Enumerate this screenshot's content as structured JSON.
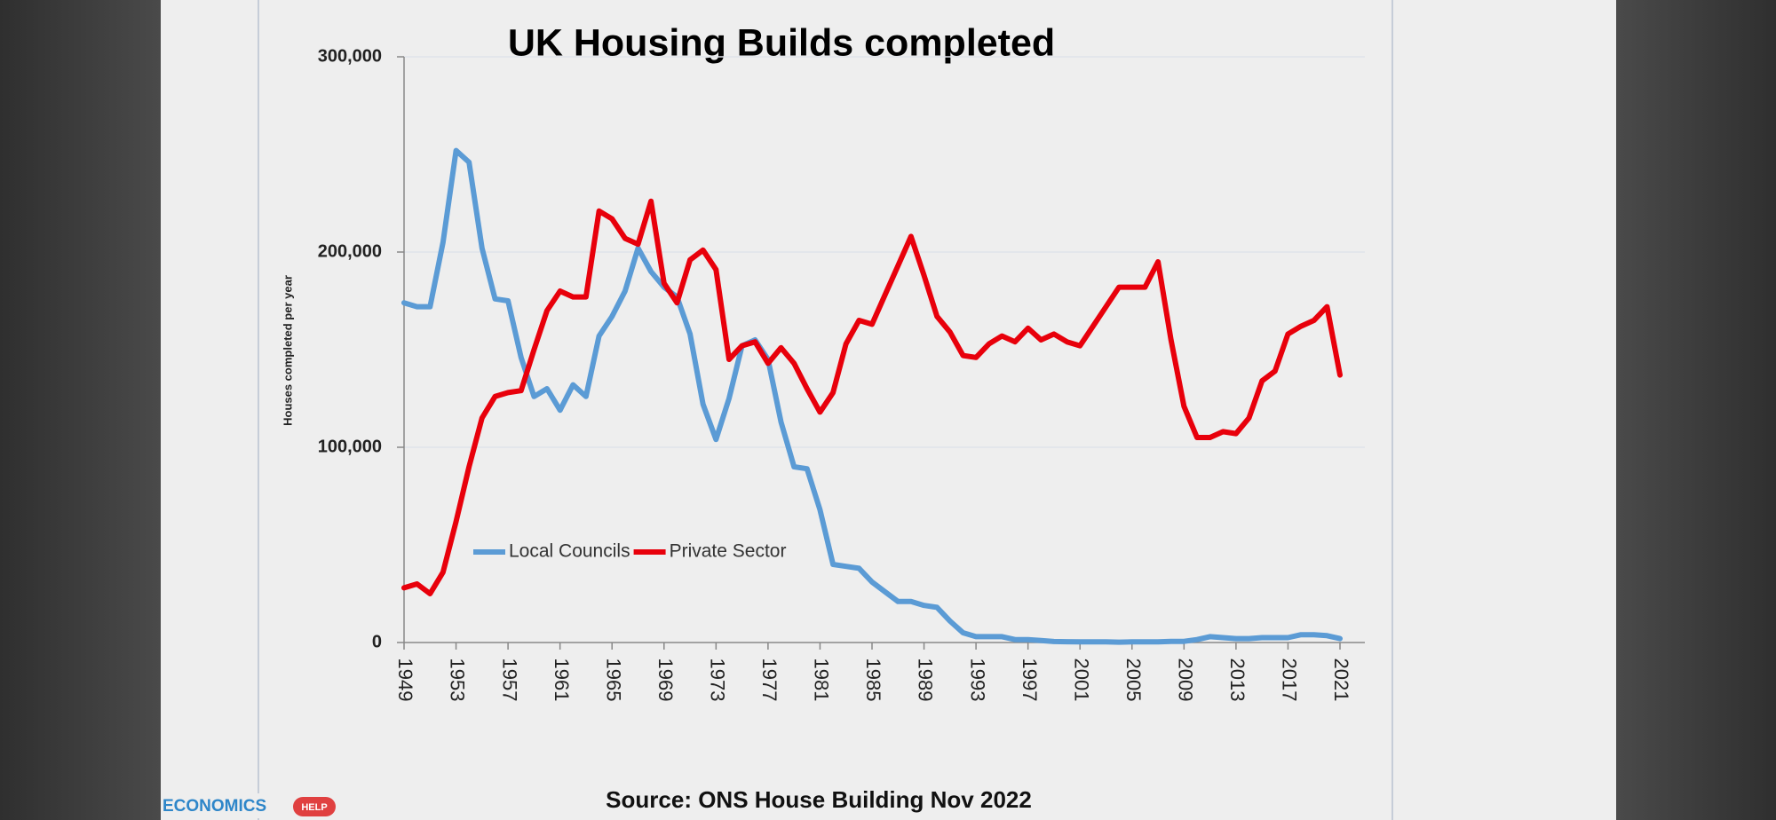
{
  "chart_data": {
    "type": "line",
    "title": "UK Housing Builds completed",
    "ylabel": "Houses completed per year",
    "source": "Source: ONS House Building Nov 2022",
    "logo": [
      "ECONOMICS",
      "HELP"
    ],
    "x": [
      1949,
      1950,
      1951,
      1952,
      1953,
      1954,
      1955,
      1956,
      1957,
      1958,
      1959,
      1960,
      1961,
      1962,
      1963,
      1964,
      1965,
      1966,
      1967,
      1968,
      1969,
      1970,
      1971,
      1972,
      1973,
      1974,
      1975,
      1976,
      1977,
      1978,
      1979,
      1980,
      1981,
      1982,
      1983,
      1984,
      1985,
      1986,
      1987,
      1988,
      1989,
      1990,
      1991,
      1992,
      1993,
      1994,
      1995,
      1996,
      1997,
      1998,
      1999,
      2000,
      2001,
      2002,
      2003,
      2004,
      2005,
      2006,
      2007,
      2008,
      2009,
      2010,
      2011,
      2012,
      2013,
      2014,
      2015,
      2016,
      2017,
      2018,
      2019,
      2020,
      2021
    ],
    "series": [
      {
        "name": "Local Councils",
        "color": "#5b9bd5",
        "values": [
          174000,
          172000,
          172000,
          205000,
          252000,
          246000,
          202000,
          176000,
          175000,
          146000,
          126000,
          130000,
          119000,
          132000,
          126000,
          157000,
          167000,
          180000,
          202000,
          190000,
          182000,
          177000,
          158000,
          122000,
          104000,
          125000,
          152000,
          155000,
          145000,
          113000,
          90000,
          89000,
          68000,
          40000,
          39000,
          38000,
          31000,
          26000,
          21000,
          21000,
          19000,
          18000,
          11000,
          5000,
          3000,
          3000,
          3000,
          1500,
          1500,
          1000,
          500,
          400,
          300,
          300,
          300,
          200,
          300,
          300,
          300,
          600,
          600,
          1500,
          3000,
          2500,
          2000,
          2000,
          2500,
          2500,
          2500,
          4000,
          4000,
          3500,
          2000
        ]
      },
      {
        "name": "Private Sector",
        "color": "#e8000b",
        "values": [
          28000,
          30000,
          25000,
          36000,
          62000,
          90000,
          115000,
          126000,
          128000,
          129000,
          150000,
          170000,
          180000,
          177000,
          177000,
          221000,
          217000,
          207000,
          204000,
          226000,
          184000,
          174000,
          196000,
          201000,
          191000,
          145000,
          152000,
          154000,
          143000,
          151000,
          143000,
          130000,
          118000,
          128000,
          153000,
          165000,
          163000,
          178000,
          193000,
          208000,
          188000,
          167000,
          159000,
          147000,
          146000,
          153000,
          157000,
          154000,
          161000,
          155000,
          158000,
          154000,
          152000,
          162000,
          172000,
          182000,
          182000,
          182000,
          195000,
          155000,
          121000,
          105000,
          105000,
          108000,
          107000,
          115000,
          134000,
          139000,
          158000,
          162000,
          165000,
          172000,
          137000
        ]
      }
    ],
    "xlim": [
      1949,
      2021
    ],
    "xticks": [
      1949,
      1953,
      1957,
      1961,
      1965,
      1969,
      1973,
      1977,
      1981,
      1985,
      1989,
      1993,
      1997,
      2001,
      2005,
      2009,
      2013,
      2017,
      2021
    ],
    "ylim": [
      0,
      300000
    ],
    "yticks": [
      0,
      {
        "value": 100000,
        "label": "100,000"
      },
      {
        "value": 200000,
        "label": "200,000"
      },
      {
        "value": 300000,
        "label": "300,000"
      }
    ],
    "grid": true,
    "legend": "bottom-left"
  }
}
